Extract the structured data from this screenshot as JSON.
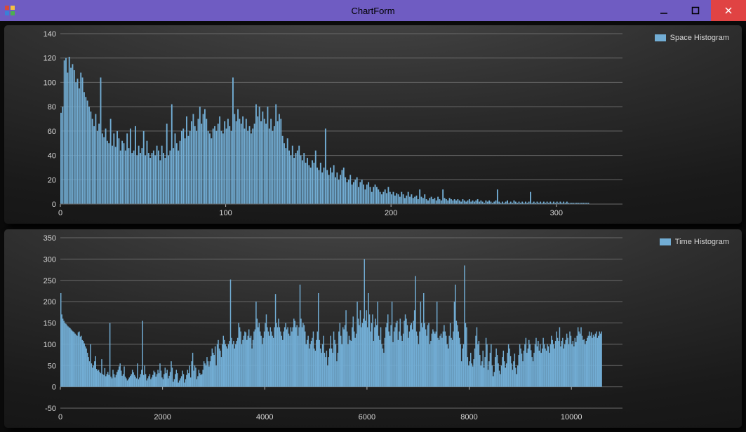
{
  "window": {
    "title": "ChartForm",
    "titlebar_bg": "#6f5cc2",
    "close_bg": "#e04343"
  },
  "chart_top": {
    "type": "histogram",
    "series_name": "Space Histogram",
    "series_color": "#72add4",
    "background_gradient_from": "#4a4a4a",
    "background_gradient_to": "#111111",
    "grid_color": "#6a6a6a",
    "text_color": "#d8d8d8",
    "label_fontsize": 11,
    "x": {
      "min": 0,
      "max": 320,
      "ticks": [
        0,
        100,
        200,
        300
      ]
    },
    "y": {
      "min": 0,
      "max": 140,
      "ticks": [
        0,
        20,
        40,
        60,
        80,
        100,
        120,
        140
      ]
    },
    "display_xmax": 340,
    "bar_width_x": 0.8,
    "values": [
      75,
      80,
      118,
      120,
      108,
      121,
      112,
      115,
      110,
      100,
      103,
      95,
      108,
      104,
      92,
      88,
      85,
      80,
      76,
      70,
      64,
      74,
      60,
      66,
      104,
      58,
      55,
      62,
      52,
      50,
      70,
      48,
      58,
      47,
      60,
      54,
      44,
      52,
      50,
      44,
      58,
      46,
      62,
      42,
      44,
      64,
      40,
      48,
      42,
      46,
      60,
      40,
      52,
      42,
      38,
      42,
      44,
      40,
      48,
      44,
      36,
      48,
      42,
      38,
      66,
      40,
      44,
      82,
      46,
      58,
      50,
      44,
      52,
      60,
      62,
      54,
      72,
      56,
      60,
      68,
      74,
      64,
      60,
      70,
      80,
      66,
      74,
      78,
      70,
      60,
      58,
      54,
      62,
      64,
      60,
      66,
      72,
      60,
      58,
      68,
      62,
      70,
      64,
      60,
      104,
      74,
      68,
      78,
      70,
      66,
      72,
      62,
      70,
      60,
      64,
      58,
      62,
      66,
      82,
      72,
      80,
      68,
      76,
      70,
      66,
      80,
      62,
      70,
      60,
      64,
      82,
      68,
      74,
      70,
      56,
      50,
      46,
      54,
      44,
      40,
      48,
      38,
      42,
      44,
      48,
      40,
      36,
      42,
      34,
      38,
      32,
      30,
      36,
      34,
      44,
      30,
      28,
      34,
      26,
      30,
      62,
      28,
      24,
      30,
      26,
      32,
      22,
      26,
      20,
      24,
      28,
      30,
      22,
      18,
      20,
      24,
      16,
      18,
      20,
      22,
      14,
      18,
      20,
      16,
      12,
      16,
      18,
      14,
      10,
      14,
      16,
      14,
      12,
      10,
      8,
      10,
      12,
      9,
      14,
      10,
      8,
      10,
      7,
      9,
      8,
      6,
      10,
      8,
      5,
      7,
      10,
      6,
      8,
      5,
      6,
      7,
      4,
      12,
      6,
      5,
      8,
      4,
      3,
      5,
      6,
      4,
      5,
      3,
      6,
      4,
      3,
      12,
      5,
      4,
      3,
      5,
      4,
      3,
      4,
      3,
      4,
      3,
      2,
      4,
      3,
      2,
      3,
      4,
      2,
      3,
      2,
      3,
      4,
      2,
      3,
      2,
      1,
      3,
      2,
      3,
      2,
      1,
      2,
      3,
      12,
      2,
      1,
      2,
      1,
      2,
      3,
      1,
      2,
      1,
      3,
      2,
      1,
      2,
      1,
      2,
      1,
      2,
      1,
      2,
      10,
      1,
      2,
      1,
      2,
      1,
      2,
      1,
      2,
      1,
      2,
      1,
      2,
      1,
      2,
      1,
      2,
      1,
      2,
      1,
      2,
      1,
      2,
      1,
      1,
      1,
      1,
      1,
      1,
      1,
      1,
      1,
      1,
      1,
      1,
      1
    ]
  },
  "chart_bottom": {
    "type": "histogram",
    "series_name": "Time Histogram",
    "series_color": "#72add4",
    "background_gradient_from": "#4a4a4a",
    "background_gradient_to": "#111111",
    "grid_color": "#6a6a6a",
    "text_color": "#d8d8d8",
    "label_fontsize": 11,
    "x": {
      "min": 0,
      "max": 10600,
      "ticks": [
        0,
        2000,
        4000,
        6000,
        8000,
        10000
      ]
    },
    "y": {
      "min": -50,
      "max": 350,
      "ticks": [
        -50,
        0,
        50,
        100,
        150,
        200,
        250,
        300,
        350
      ]
    },
    "display_xmax": 11000,
    "bar_width_x": 20,
    "values": [
      220,
      170,
      160,
      155,
      150,
      148,
      145,
      142,
      140,
      138,
      135,
      132,
      130,
      128,
      125,
      122,
      120,
      128,
      130,
      118,
      120,
      110,
      108,
      102,
      95,
      90,
      80,
      70,
      60,
      100,
      55,
      45,
      50,
      60,
      72,
      42,
      38,
      40,
      35,
      32,
      65,
      30,
      28,
      44,
      25,
      30,
      35,
      28,
      150,
      24,
      20,
      40,
      30,
      22,
      28,
      35,
      40,
      48,
      55,
      38,
      26,
      30,
      48,
      24,
      20,
      15,
      18,
      22,
      26,
      30,
      40,
      34,
      28,
      24,
      20,
      55,
      18,
      22,
      30,
      40,
      155,
      28,
      50,
      30,
      15,
      20,
      25,
      30,
      18,
      22,
      28,
      38,
      34,
      24,
      30,
      40,
      32,
      55,
      38,
      22,
      18,
      30,
      45,
      32,
      40,
      20,
      26,
      35,
      60,
      45,
      12,
      18,
      30,
      40,
      32,
      10,
      15,
      20,
      25,
      38,
      30,
      10,
      18,
      28,
      40,
      32,
      50,
      22,
      60,
      80,
      38,
      50,
      45,
      18,
      25,
      40,
      32,
      28,
      30,
      40,
      60,
      55,
      50,
      70,
      60,
      48,
      60,
      72,
      90,
      80,
      75,
      95,
      50,
      100,
      110,
      90,
      85,
      70,
      100,
      120,
      110,
      100,
      95,
      90,
      100,
      108,
      252,
      115,
      100,
      108,
      90,
      100,
      108,
      115,
      150,
      140,
      130,
      100,
      110,
      120,
      130,
      128,
      110,
      120,
      135,
      115,
      120,
      90,
      110,
      130,
      135,
      200,
      160,
      140,
      150,
      130,
      120,
      100,
      115,
      130,
      150,
      170,
      140,
      130,
      120,
      140,
      130,
      120,
      115,
      140,
      218,
      150,
      140,
      160,
      140,
      130,
      120,
      110,
      130,
      140,
      150,
      135,
      140,
      125,
      120,
      140,
      130,
      140,
      160,
      155,
      140,
      145,
      120,
      140,
      240,
      160,
      140,
      150,
      145,
      130,
      100,
      110,
      120,
      90,
      100,
      108,
      115,
      130,
      90,
      85,
      110,
      130,
      220,
      110,
      90,
      80,
      100,
      120,
      80,
      70,
      85,
      50,
      70,
      90,
      120,
      90,
      80,
      130,
      110,
      100,
      60,
      80,
      130,
      150,
      120,
      100,
      140,
      135,
      145,
      180,
      130,
      100,
      120,
      110,
      108,
      140,
      165,
      130,
      115,
      125,
      200,
      160,
      145,
      180,
      140,
      150,
      160,
      300,
      155,
      180,
      140,
      220,
      170,
      130,
      150,
      170,
      108,
      140,
      160,
      145,
      200,
      120,
      110,
      140,
      100,
      90,
      80,
      115,
      140,
      150,
      170,
      130,
      120,
      145,
      200,
      105,
      130,
      140,
      150,
      155,
      110,
      130,
      160,
      120,
      108,
      125,
      155,
      170,
      160,
      145,
      115,
      130,
      145,
      150,
      135,
      155,
      180,
      260,
      130,
      120,
      100,
      130,
      200,
      150,
      140,
      220,
      150,
      135,
      120,
      145,
      150,
      100,
      108,
      125,
      135,
      130,
      125,
      130,
      200,
      115,
      110,
      120,
      125,
      115,
      130,
      145,
      130,
      120,
      100,
      90,
      120,
      150,
      115,
      110,
      130,
      200,
      240,
      155,
      145,
      130,
      115,
      100,
      60,
      90,
      100,
      285,
      150,
      140,
      70,
      50,
      60,
      80,
      55,
      48,
      65,
      90,
      120,
      140,
      100,
      108,
      75,
      50,
      60,
      85,
      45,
      70,
      115,
      100,
      40,
      60,
      80,
      100,
      50,
      25,
      35,
      70,
      90,
      75,
      55,
      38,
      30,
      50,
      70,
      85,
      60,
      45,
      55,
      80,
      100,
      90,
      72,
      55,
      40,
      60,
      78,
      45,
      30,
      50,
      75,
      100,
      90,
      78,
      60,
      85,
      100,
      115,
      80,
      90,
      110,
      100,
      86,
      70,
      60,
      80,
      100,
      115,
      95,
      108,
      85,
      100,
      80,
      90,
      115,
      100,
      90,
      85,
      100,
      95,
      80,
      100,
      120,
      110,
      100,
      90,
      108,
      130,
      115,
      108,
      140,
      95,
      108,
      115,
      90,
      100,
      110,
      125,
      115,
      100,
      130,
      120,
      100,
      108,
      95,
      115,
      105,
      120,
      140,
      130,
      125,
      140,
      120,
      110,
      112,
      100,
      108,
      115,
      120,
      130,
      120,
      128,
      115,
      122,
      118,
      125,
      130,
      115,
      120,
      130,
      125,
      130
    ]
  }
}
